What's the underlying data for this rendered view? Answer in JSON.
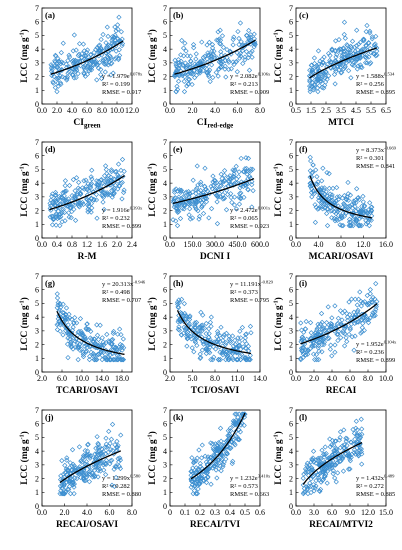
{
  "figure": {
    "marker_color": "#3d8fd0",
    "fit_color": "#000000"
  },
  "chart_data": [
    {
      "type": "scatter",
      "letter": "(a)",
      "xlabel": "CI",
      "xlabel_sub": "green",
      "ylabel": "LCC (mg g",
      "ylabel_sup": "-1",
      "ylabel_end": ")",
      "xlim": [
        0,
        12
      ],
      "ylim": [
        0,
        7
      ],
      "xticks": [
        0.0,
        2.0,
        4.0,
        6.0,
        8.0,
        10.0,
        12.0
      ],
      "xtick_labels": [
        "0.0",
        "2.0",
        "4.0",
        "6.0",
        "8.0",
        "10.0",
        "12.0"
      ],
      "yticks": [
        0,
        1,
        2,
        3,
        4,
        5,
        6,
        7
      ],
      "ytick_labels": [
        "0",
        "1",
        "2",
        "3",
        "4",
        "5",
        "6",
        "7"
      ],
      "fit": {
        "type": "exp",
        "a": 1.979,
        "b": 0.078
      },
      "point_range": {
        "x": [
          1.2,
          10.8
        ]
      },
      "equation": {
        "base": "y = 1.979e",
        "exp": "0.078x"
      },
      "r2": "R² = 0.199",
      "rmse": "RMSE = 0.917"
    },
    {
      "type": "scatter",
      "letter": "(b)",
      "xlabel": "CI",
      "xlabel_sub": "red-edge",
      "ylabel": "LCC (mg g",
      "ylabel_sup": "-1",
      "ylabel_end": ")",
      "xlim": [
        0,
        8
      ],
      "ylim": [
        0,
        7
      ],
      "xticks": [
        0.0,
        2.0,
        4.0,
        6.0,
        8.0
      ],
      "xtick_labels": [
        "0.0",
        "2.0",
        "4.0",
        "6.0",
        "8.0"
      ],
      "yticks": [
        0,
        1,
        2,
        3,
        4,
        5,
        6,
        7
      ],
      "ytick_labels": [
        "0",
        "1",
        "2",
        "3",
        "4",
        "5",
        "6",
        "7"
      ],
      "fit": {
        "type": "exp",
        "a": 2.082,
        "b": 0.106
      },
      "point_range": {
        "x": [
          0.4,
          7.6
        ]
      },
      "equation": {
        "base": "y = 2.082e",
        "exp": "0.106x"
      },
      "r2": "R² = 0.213",
      "rmse": "RMSE = 0.909"
    },
    {
      "type": "scatter",
      "letter": "(c)",
      "xlabel": "MTCI",
      "ylabel": "LCC (mg g",
      "ylabel_sup": "-1",
      "ylabel_end": ")",
      "xlim": [
        0.5,
        6.5
      ],
      "ylim": [
        0,
        7
      ],
      "xticks": [
        0.5,
        1.5,
        2.5,
        3.5,
        4.5,
        5.5,
        6.5
      ],
      "xtick_labels": [
        "0.5",
        "1.5",
        "2.5",
        "3.5",
        "4.5",
        "5.5",
        "6.5"
      ],
      "yticks": [
        0,
        1,
        2,
        3,
        4,
        5,
        6,
        7
      ],
      "ytick_labels": [
        "0",
        "1",
        "2",
        "3",
        "4",
        "5",
        "6",
        "7"
      ],
      "fit": {
        "type": "pow",
        "a": 1.588,
        "b": 0.534
      },
      "point_range": {
        "x": [
          1.4,
          5.9
        ]
      },
      "equation": {
        "base": "y = 1.588x",
        "exp": "0.534"
      },
      "r2": "R² = 0.256",
      "rmse": "RMSE = 0.895"
    },
    {
      "type": "scatter",
      "letter": "(d)",
      "xlabel": "R-M",
      "ylabel": "LCC (mg g",
      "ylabel_sup": "-1",
      "ylabel_end": ")",
      "xlim": [
        0,
        2.4
      ],
      "ylim": [
        0,
        7
      ],
      "xticks": [
        0.0,
        0.4,
        0.8,
        1.2,
        1.6,
        2.0,
        2.4
      ],
      "xtick_labels": [
        "0.0",
        "0.4",
        "0.8",
        "1.2",
        "1.6",
        "2.0",
        "2.4"
      ],
      "yticks": [
        0,
        1,
        2,
        3,
        4,
        5,
        6,
        7
      ],
      "ytick_labels": [
        "0",
        "1",
        "2",
        "3",
        "4",
        "5",
        "6",
        "7"
      ],
      "fit": {
        "type": "exp",
        "a": 1.916,
        "b": 0.393
      },
      "point_range": {
        "x": [
          0.2,
          2.2
        ]
      },
      "equation": {
        "base": "y = 1.916e",
        "exp": "0.393x"
      },
      "r2": "R² = 0.232",
      "rmse": "RMSE = 0.899"
    },
    {
      "type": "scatter",
      "letter": "(e)",
      "xlabel": "DCNI I",
      "ylabel": "LCC (mg g",
      "ylabel_sup": "-1",
      "ylabel_end": ")",
      "xlim": [
        0,
        600
      ],
      "ylim": [
        0,
        7
      ],
      "xticks": [
        0,
        150,
        300,
        450,
        600
      ],
      "xtick_labels": [
        "0.0",
        "150.0",
        "300.0",
        "450.0",
        "600.0"
      ],
      "yticks": [
        0,
        1,
        2,
        3,
        4,
        5,
        6,
        7
      ],
      "ytick_labels": [
        "0",
        "1",
        "2",
        "3",
        "4",
        "5",
        "6",
        "7"
      ],
      "fit": {
        "type": "exp",
        "a": 2.472,
        "b": 0.001
      },
      "point_range": {
        "x": [
          20,
          560
        ]
      },
      "equation": {
        "base": "y = 2.472e",
        "exp": "0.001x"
      },
      "r2": "R² = 0.065",
      "rmse": "RMSE = 0.923"
    },
    {
      "type": "scatter",
      "letter": "(f)",
      "xlabel": "MCARI/OSAVI",
      "ylabel": "LCC (mg g",
      "ylabel_sup": "-1",
      "ylabel_end": ")",
      "xlim": [
        0,
        16
      ],
      "ylim": [
        0,
        7
      ],
      "xticks": [
        0.0,
        4.0,
        8.0,
        12.0,
        16.0
      ],
      "xtick_labels": [
        "0.0",
        "4.0",
        "8.0",
        "12.0",
        "16.0"
      ],
      "yticks": [
        0,
        1,
        2,
        3,
        4,
        5,
        6,
        7
      ],
      "ytick_labels": [
        "0",
        "1",
        "2",
        "3",
        "4",
        "5",
        "6",
        "7"
      ],
      "fit": {
        "type": "pow",
        "a": 8.373,
        "b": -0.669
      },
      "point_range": {
        "x": [
          2.5,
          13.5
        ]
      },
      "equation": {
        "base": "y = 8.373x",
        "exp": "-0.669"
      },
      "r2": "R² = 0.301",
      "rmse": "RMSE = 0.841"
    },
    {
      "type": "scatter",
      "letter": "(g)",
      "xlabel": "TCARI/OSAVI",
      "ylabel": "LCC (mg g",
      "ylabel_sup": "-1",
      "ylabel_end": ")",
      "xlim": [
        2,
        20
      ],
      "ylim": [
        0,
        7
      ],
      "xticks": [
        2.0,
        6.0,
        10.0,
        14.0,
        18.0
      ],
      "xtick_labels": [
        "2.0",
        "6.0",
        "10.0",
        "14.0",
        "18.0"
      ],
      "yticks": [
        0,
        1,
        2,
        3,
        4,
        5,
        6,
        7
      ],
      "ytick_labels": [
        "0",
        "1",
        "2",
        "3",
        "4",
        "5",
        "6",
        "7"
      ],
      "fit": {
        "type": "pow",
        "a": 20.313,
        "b": -0.946
      },
      "point_range": {
        "x": [
          5,
          18.5
        ]
      },
      "equation": {
        "base": "y = 20.313x",
        "exp": "-0.946"
      },
      "r2": "R² = 0.498",
      "rmse": "RMSE = 0.707"
    },
    {
      "type": "scatter",
      "letter": "(h)",
      "xlabel": "TCI/OSAVI",
      "ylabel": "LCC (mg g",
      "ylabel_sup": "-1",
      "ylabel_end": ")",
      "xlim": [
        2,
        14
      ],
      "ylim": [
        0,
        7
      ],
      "xticks": [
        2.0,
        5.0,
        8.0,
        11.0,
        14.0
      ],
      "xtick_labels": [
        "2.0",
        "5.0",
        "8.0",
        "11.0",
        "14.0"
      ],
      "yticks": [
        0,
        1,
        2,
        3,
        4,
        5,
        6,
        7
      ],
      "ytick_labels": [
        "0",
        "1",
        "2",
        "3",
        "4",
        "5",
        "6",
        "7"
      ],
      "fit": {
        "type": "pow",
        "a": 11.191,
        "b": -0.829
      },
      "point_range": {
        "x": [
          3,
          12.8
        ]
      },
      "equation": {
        "base": "y = 11.191x",
        "exp": "-0.829"
      },
      "r2": "R² = 0.373",
      "rmse": "RMSE = 0.795"
    },
    {
      "type": "scatter",
      "letter": "(i)",
      "xlabel": "RECAI",
      "ylabel": "LCC (mg g",
      "ylabel_sup": "-1",
      "ylabel_end": ")",
      "xlim": [
        0,
        10
      ],
      "ylim": [
        0,
        7
      ],
      "xticks": [
        0.0,
        2.0,
        4.0,
        6.0,
        8.0,
        10.0
      ],
      "xtick_labels": [
        "0.0",
        "2.0",
        "4.0",
        "6.0",
        "8.0",
        "10.0"
      ],
      "yticks": [
        0,
        1,
        2,
        3,
        4,
        5,
        6,
        7
      ],
      "ytick_labels": [
        "0",
        "1",
        "2",
        "3",
        "4",
        "5",
        "6",
        "7"
      ],
      "fit": {
        "type": "exp",
        "a": 1.952,
        "b": 0.104
      },
      "point_range": {
        "x": [
          0.5,
          9
        ]
      },
      "equation": {
        "base": "y = 1.952e",
        "exp": "0.104x"
      },
      "r2": "R² = 0.236",
      "rmse": "RMSE = 0.899"
    },
    {
      "type": "scatter",
      "letter": "(j)",
      "xlabel": "RECAI/OSAVI",
      "ylabel": "LCC (mg g",
      "ylabel_sup": "-1",
      "ylabel_end": ")",
      "xlim": [
        0,
        8
      ],
      "ylim": [
        0,
        7
      ],
      "xticks": [
        0.0,
        2.0,
        4.0,
        6.0,
        8.0
      ],
      "xtick_labels": [
        "0.0",
        "2.0",
        "4.0",
        "6.0",
        "8.0"
      ],
      "yticks": [
        0,
        1,
        2,
        3,
        4,
        5,
        6,
        7
      ],
      "ytick_labels": [
        "0",
        "1",
        "2",
        "3",
        "4",
        "5",
        "6",
        "7"
      ],
      "fit": {
        "type": "pow",
        "a": 1.299,
        "b": 0.58
      },
      "point_range": {
        "x": [
          1.6,
          7
        ]
      },
      "equation": {
        "base": "y = 1.299x",
        "exp": "0.580"
      },
      "r2": "R² = 0.282",
      "rmse": "RMSE = 0.880"
    },
    {
      "type": "scatter",
      "letter": "(k)",
      "xlabel": "RECAI/TVI",
      "ylabel": "LCC (mg g",
      "ylabel_sup": "-1",
      "ylabel_end": ")",
      "xlim": [
        0,
        0.6
      ],
      "ylim": [
        0,
        7
      ],
      "xticks": [
        0.0,
        0.1,
        0.2,
        0.3,
        0.4,
        0.5,
        0.6
      ],
      "xtick_labels": [
        "0",
        "0.1",
        "0.2",
        "0.3",
        "0.4",
        "0.5",
        "0.6"
      ],
      "yticks": [
        0,
        1,
        2,
        3,
        4,
        5,
        6,
        7
      ],
      "ytick_labels": [
        "0",
        "1",
        "2",
        "3",
        "4",
        "5",
        "6",
        "7"
      ],
      "fit": {
        "type": "exp",
        "a": 1.232,
        "b": 3.41
      },
      "point_range": {
        "x": [
          0.14,
          0.5
        ]
      },
      "equation": {
        "base": "y = 1.232e",
        "exp": "3.410x"
      },
      "r2": "R² = 0.573",
      "rmse": "RMSE = 0.663"
    },
    {
      "type": "scatter",
      "letter": "(l)",
      "xlabel": "RECAI/MTVI2",
      "ylabel": "LCC (mg g",
      "ylabel_sup": "-1",
      "ylabel_end": ")",
      "xlim": [
        0,
        15
      ],
      "ylim": [
        0,
        7
      ],
      "xticks": [
        0.0,
        3.0,
        6.0,
        9.0,
        12.0,
        15.0
      ],
      "xtick_labels": [
        "0.0",
        "3.0",
        "6.0",
        "9.0",
        "12.0",
        "15.0"
      ],
      "yticks": [
        0,
        1,
        2,
        3,
        4,
        5,
        6,
        7
      ],
      "ytick_labels": [
        "0",
        "1",
        "2",
        "3",
        "4",
        "5",
        "6",
        "7"
      ],
      "fit": {
        "type": "pow",
        "a": 1.432,
        "b": 0.489
      },
      "point_range": {
        "x": [
          1.2,
          11
        ]
      },
      "equation": {
        "base": "y = 1.432x",
        "exp": "0.489"
      },
      "r2": "R² = 0.272",
      "rmse": "RMSE = 0.885"
    }
  ]
}
